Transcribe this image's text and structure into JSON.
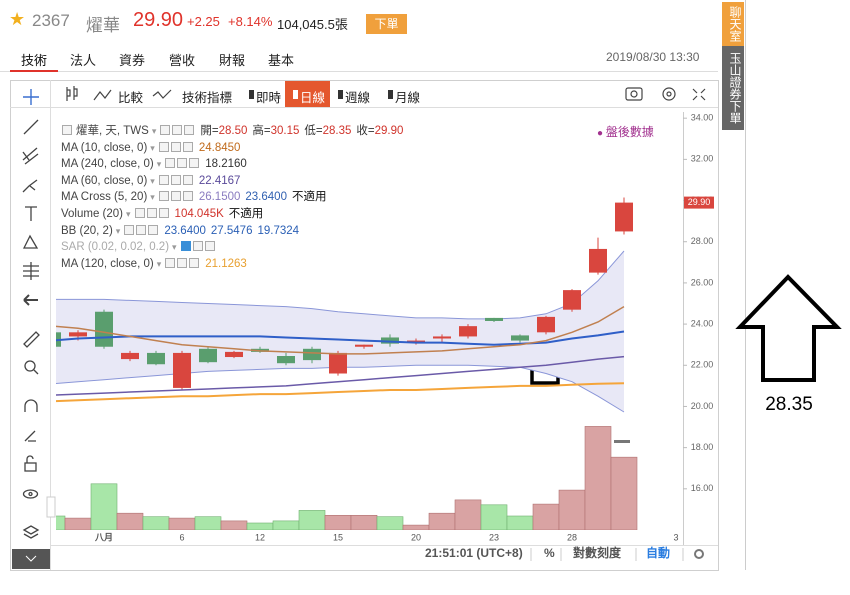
{
  "header": {
    "code": "2367",
    "name": "燿華",
    "price": "29.90",
    "change": "+2.25",
    "change_pct": "+8.14%",
    "volume": "104,045.5張",
    "order_button": "下單"
  },
  "tabs": [
    "技術",
    "法人",
    "資券",
    "營收",
    "財報",
    "基本"
  ],
  "datetime": "2019/08/30 13:30",
  "side_tabs": [
    "聊天室",
    "玉山證券下單"
  ],
  "toolbar": {
    "compare": "比較",
    "indicators": "技術指標",
    "periods": [
      "即時",
      "日線",
      "週線",
      "月線"
    ]
  },
  "legend": {
    "status": "盤後數據",
    "rows": [
      {
        "label": "燿華, 天, TWS",
        "items": [
          {
            "prefix": "開=",
            "text": "28.50",
            "color": "#d0332b"
          },
          {
            "prefix": "高=",
            "text": "30.15",
            "color": "#d0332b"
          },
          {
            "prefix": "低=",
            "text": "28.35",
            "color": "#d0332b"
          },
          {
            "prefix": "收=",
            "text": "29.90",
            "color": "#d0332b"
          }
        ]
      },
      {
        "label": "MA (10, close, 0)",
        "items": [
          {
            "text": "24.8450",
            "color": "#c06a1b"
          }
        ]
      },
      {
        "label": "MA (240, close, 0)",
        "items": [
          {
            "text": "18.2160",
            "color": "#333333"
          }
        ]
      },
      {
        "label": "MA (60, close, 0)",
        "items": [
          {
            "text": "22.4167",
            "color": "#5a4a9a"
          }
        ]
      },
      {
        "label": "MA Cross (5, 20)",
        "items": [
          {
            "text": "26.1500",
            "color": "#8a7cc0"
          },
          {
            "text": "23.6400",
            "color": "#2f5fb0"
          },
          {
            "text": "不適用",
            "color": "#111111"
          }
        ]
      },
      {
        "label": "Volume (20)",
        "items": [
          {
            "text": "104.045K",
            "color": "#d0332b"
          },
          {
            "text": "不適用",
            "color": "#111111"
          }
        ]
      },
      {
        "label": "BB (20, 2)",
        "items": [
          {
            "text": "23.6400",
            "color": "#2a5fb5"
          },
          {
            "text": "27.5476",
            "color": "#2a5fb5"
          },
          {
            "text": "19.7324",
            "color": "#2a5fb5"
          }
        ]
      },
      {
        "label": "SAR (0.02, 0.02, 0.2)",
        "items": []
      },
      {
        "label": "MA (120, close, 0)",
        "items": [
          {
            "text": "21.1263",
            "color": "#e8a030"
          }
        ]
      }
    ]
  },
  "chart_data": {
    "type": "candlestick",
    "categories": [
      null,
      null,
      "八月",
      null,
      null,
      "6",
      null,
      null,
      "12",
      null,
      null,
      "15",
      null,
      null,
      "20",
      null,
      null,
      "23",
      null,
      null,
      "28",
      null,
      null,
      null,
      "3"
    ],
    "open": [
      23.6,
      23.4,
      24.6,
      22.3,
      22.6,
      20.9,
      22.8,
      22.4,
      22.8,
      22.45,
      22.8,
      21.6,
      22.9,
      23.35,
      23.15,
      23.3,
      23.4,
      24.3,
      23.45,
      23.6,
      24.7,
      26.5,
      28.5,
      null,
      null
    ],
    "high": [
      23.7,
      23.7,
      24.7,
      22.7,
      22.7,
      22.7,
      22.9,
      22.7,
      22.9,
      22.6,
      22.9,
      22.7,
      23.0,
      23.5,
      23.3,
      23.5,
      24.0,
      24.3,
      23.5,
      24.4,
      25.7,
      28.2,
      30.15,
      null,
      null
    ],
    "low": [
      22.7,
      23.2,
      22.8,
      22.2,
      22.0,
      20.8,
      22.1,
      22.35,
      22.6,
      22.0,
      22.1,
      21.5,
      22.8,
      22.9,
      23.0,
      23.1,
      23.3,
      24.1,
      23.1,
      23.5,
      24.6,
      26.4,
      28.35,
      null,
      null
    ],
    "close": [
      22.9,
      23.6,
      22.9,
      22.6,
      22.05,
      22.6,
      22.15,
      22.65,
      22.65,
      22.1,
      22.25,
      22.6,
      23.0,
      23.05,
      23.2,
      23.4,
      23.9,
      24.15,
      23.2,
      24.35,
      25.65,
      27.65,
      29.9,
      null,
      null
    ],
    "volume": [
      20,
      17,
      66,
      24,
      19,
      17,
      19,
      13,
      10,
      13,
      28,
      21,
      21,
      19,
      7,
      24,
      43,
      36,
      20,
      37,
      57,
      148,
      104.045,
      null,
      null
    ],
    "up_color": "#d9463e",
    "down_color": "#5a9e6e",
    "volume_up_color": "#d9a3a3",
    "volume_down_color": "#a8e6a8",
    "ylim": [
      14.0,
      34.3
    ],
    "yticks": [
      {
        "value": 16,
        "label": "16.00"
      },
      {
        "value": 18,
        "label": "18.00"
      },
      {
        "value": 20,
        "label": "20.00"
      },
      {
        "value": 22,
        "label": "22.00"
      },
      {
        "value": 24,
        "label": "24.00"
      },
      {
        "value": 26,
        "label": "26.00"
      },
      {
        "value": 28,
        "label": "28.00"
      },
      {
        "value": 30,
        "label": "30.00"
      },
      {
        "value": 32,
        "label": "32.00"
      },
      {
        "value": 34,
        "label": "34.00"
      }
    ],
    "y2lim": [
      0,
      150
    ],
    "band": {
      "upper": [
        25.2,
        25.2,
        25.2,
        25.15,
        25.1,
        25.05,
        25.0,
        24.95,
        24.9,
        24.85,
        24.75,
        24.6,
        24.5,
        24.4,
        24.3,
        24.3,
        24.25,
        24.25,
        24.3,
        24.5,
        25.0,
        26.1,
        27.55,
        null,
        null
      ],
      "lower": [
        21.1,
        21.2,
        21.3,
        21.4,
        21.5,
        21.6,
        21.7,
        21.75,
        21.8,
        21.85,
        21.85,
        21.9,
        21.9,
        21.95,
        22.0,
        22.0,
        22.0,
        21.95,
        21.9,
        21.6,
        21.2,
        20.5,
        19.73,
        null,
        null
      ],
      "color": "#8a96d8",
      "fill": "#e8e8f6"
    },
    "series": [
      {
        "color": "#2f5fc8",
        "values": [
          23.2,
          23.3,
          23.35,
          23.4,
          23.4,
          23.4,
          23.4,
          23.4,
          23.4,
          23.35,
          23.3,
          23.25,
          23.2,
          23.15,
          23.1,
          23.1,
          23.05,
          23.0,
          23.05,
          23.1,
          23.3,
          23.45,
          23.64,
          null,
          null
        ]
      },
      {
        "color": "#c08050",
        "values": [
          23.9,
          23.8,
          23.6,
          23.4,
          23.2,
          23.0,
          22.9,
          22.8,
          22.7,
          22.65,
          22.6,
          22.55,
          22.55,
          22.6,
          22.65,
          22.7,
          22.8,
          22.9,
          23.0,
          23.2,
          23.6,
          24.1,
          24.85,
          null,
          null
        ]
      },
      {
        "color": "#6a5aa8",
        "values": [
          20.55,
          20.6,
          20.65,
          20.7,
          20.75,
          20.8,
          20.85,
          20.9,
          20.95,
          21.0,
          21.1,
          21.2,
          21.3,
          21.4,
          21.5,
          21.6,
          21.7,
          21.8,
          21.9,
          22.0,
          22.15,
          22.3,
          22.42,
          null,
          null
        ]
      },
      {
        "color": "#f5a53a",
        "values": [
          20.25,
          20.3,
          20.35,
          20.4,
          20.45,
          20.5,
          20.5,
          20.55,
          20.6,
          20.6,
          20.65,
          20.7,
          20.75,
          20.8,
          20.8,
          20.85,
          20.9,
          20.95,
          21.0,
          21.0,
          21.05,
          21.1,
          21.13,
          null,
          null
        ]
      }
    ]
  },
  "footer": {
    "time": "21:51:01 (UTC+8)",
    "percent": "%",
    "log": "對數刻度",
    "auto": "自動"
  },
  "annotation": "28.35"
}
